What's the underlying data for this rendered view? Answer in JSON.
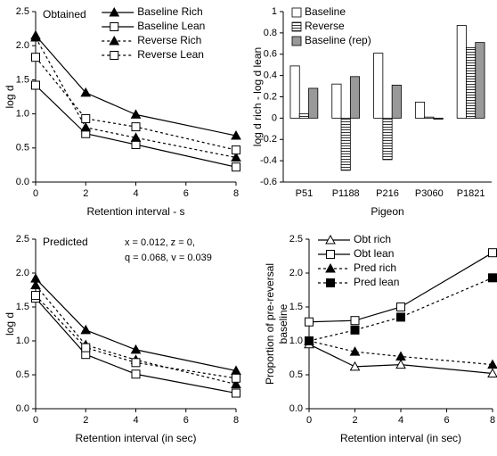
{
  "chart_data": [
    {
      "type": "line",
      "title": "Obtained",
      "x_label": "Retention interval - s",
      "y_label": [
        "log d"
      ],
      "x": [
        0,
        2,
        4,
        8
      ],
      "xlim": [
        0,
        8
      ],
      "xticks": [
        0,
        2,
        4,
        6,
        8
      ],
      "ylim": [
        0,
        2.5
      ],
      "yticks": [
        {
          "value": 0,
          "label": "0.0"
        },
        0.5,
        {
          "value": 1,
          "label": "1.0"
        },
        1.5,
        {
          "value": 2,
          "label": "2.0"
        },
        2.5
      ],
      "legend": "upper right",
      "series": [
        {
          "name": "Baseline Rich",
          "color": "#000",
          "marker": "triangle",
          "filled": true,
          "dashed": false,
          "values": [
            2.15,
            1.31,
            0.99,
            0.68
          ]
        },
        {
          "name": "Baseline Lean",
          "color": "#000",
          "marker": "square",
          "filled": false,
          "dashed": false,
          "values": [
            1.42,
            0.71,
            0.55,
            0.22
          ]
        },
        {
          "name": "Reverse Rich",
          "color": "#000",
          "marker": "triangle",
          "filled": true,
          "dashed": true,
          "values": [
            2.12,
            0.8,
            0.65,
            0.36
          ]
        },
        {
          "name": "Reverse Lean",
          "color": "#000",
          "marker": "square",
          "filled": false,
          "dashed": true,
          "values": [
            1.83,
            0.93,
            0.81,
            0.47
          ]
        }
      ]
    },
    {
      "type": "bar",
      "x_label": "Pigeon",
      "y_label": [
        "log d rich - log d lean"
      ],
      "categories": [
        "P51",
        "P1188",
        "P216",
        "P3060",
        "P1821"
      ],
      "ylim": [
        -0.6,
        1
      ],
      "yticks": [
        -0.6,
        -0.4,
        -0.2,
        0,
        0.2,
        0.4,
        0.6,
        0.8,
        1
      ],
      "legend": "upper left",
      "series": [
        {
          "name": "Baseline",
          "color": "#ffffff",
          "hatch": false,
          "values": [
            0.49,
            0.32,
            0.61,
            0.15,
            0.87
          ]
        },
        {
          "name": "Reverse",
          "color": "#ffffff",
          "hatch": true,
          "values": [
            0.04,
            -0.49,
            -0.39,
            0.01,
            0.66
          ]
        },
        {
          "name": "Baseline (rep)",
          "color": "#999999",
          "hatch": false,
          "values": [
            0.28,
            0.39,
            0.31,
            -0.01,
            0.71
          ]
        }
      ]
    },
    {
      "type": "line",
      "title": "Predicted",
      "x_label": "Retention interval (in sec)",
      "y_label": [
        "log d"
      ],
      "annotations": [
        "x = 0.012, z = 0,",
        "q = 0.068, v = 0.039"
      ],
      "x": [
        0,
        2,
        4,
        8
      ],
      "xlim": [
        0,
        8
      ],
      "xticks": [
        0,
        2,
        4,
        6,
        8
      ],
      "ylim": [
        0,
        2.5
      ],
      "yticks": [
        {
          "value": 0,
          "label": "0.0"
        },
        0.5,
        {
          "value": 1,
          "label": "1.0"
        },
        1.5,
        {
          "value": 2,
          "label": "2.0"
        },
        2.5
      ],
      "series": [
        {
          "color": "#000",
          "marker": "triangle",
          "filled": true,
          "dashed": false,
          "values": [
            1.92,
            1.16,
            0.87,
            0.56
          ]
        },
        {
          "color": "#000",
          "marker": "square",
          "filled": false,
          "dashed": false,
          "values": [
            1.63,
            0.8,
            0.51,
            0.23
          ]
        },
        {
          "color": "#000",
          "marker": "triangle",
          "filled": true,
          "dashed": true,
          "values": [
            1.82,
            0.94,
            0.72,
            0.36
          ]
        },
        {
          "color": "#000",
          "marker": "square",
          "filled": false,
          "dashed": true,
          "values": [
            1.67,
            0.9,
            0.68,
            0.45
          ]
        }
      ]
    },
    {
      "type": "line",
      "x_label": "Retention interval (in sec)",
      "y_label": [
        "Proportion of pre-reversal",
        "baseline"
      ],
      "x": [
        0,
        2,
        4,
        8
      ],
      "xlim": [
        0,
        8
      ],
      "xticks": [
        0,
        2,
        4,
        6,
        8
      ],
      "ylim": [
        0,
        2.5
      ],
      "yticks": [
        {
          "value": 0,
          "label": "0.0"
        },
        0.5,
        {
          "value": 1,
          "label": "1.0"
        },
        1.5,
        {
          "value": 2,
          "label": "2.0"
        },
        2.5
      ],
      "legend": "upper left",
      "series": [
        {
          "name": "Obt rich",
          "color": "#000",
          "marker": "triangle",
          "filled": false,
          "dashed": false,
          "values": [
            0.95,
            0.62,
            0.65,
            0.52
          ]
        },
        {
          "name": "Obt lean",
          "color": "#000",
          "marker": "square",
          "filled": false,
          "dashed": false,
          "values": [
            1.28,
            1.3,
            1.5,
            2.3
          ]
        },
        {
          "name": "Pred rich",
          "color": "#000",
          "marker": "triangle",
          "filled": true,
          "dashed": true,
          "values": [
            1.0,
            0.84,
            0.77,
            0.65
          ]
        },
        {
          "name": "Pred lean",
          "color": "#000",
          "marker": "square",
          "filled": true,
          "dashed": true,
          "values": [
            1.0,
            1.16,
            1.35,
            1.93
          ]
        }
      ]
    }
  ]
}
